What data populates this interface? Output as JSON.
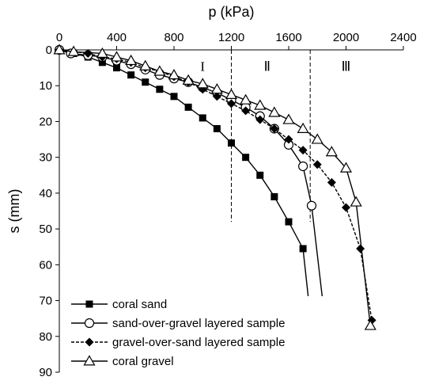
{
  "chart_data": {
    "type": "line",
    "xlabel": "p (kPa)",
    "ylabel": "s (mm)",
    "xlim": [
      0,
      2400
    ],
    "ylim": [
      0,
      90
    ],
    "x_ticks": [
      "0",
      "400",
      "800",
      "1200",
      "1600",
      "2000",
      "2400"
    ],
    "y_ticks": [
      "0",
      "10",
      "20",
      "30",
      "40",
      "50",
      "60",
      "70",
      "80",
      "90"
    ],
    "x_axis_position": "top",
    "y_axis_inverted": true,
    "grid": false,
    "legend_position": "bottom-left",
    "regions": [
      {
        "label": "I",
        "boundary_p": null
      },
      {
        "label": "Ⅱ",
        "boundary_p": 1200
      },
      {
        "label": "Ⅲ",
        "boundary_p": 1750
      }
    ],
    "boundaries": [
      {
        "p": 1200,
        "s_min": 0,
        "s_max": 48
      },
      {
        "p": 1750,
        "s_min": 0,
        "s_max": 48
      }
    ],
    "region_label_positions": [
      {
        "label": "I",
        "p": 1000,
        "s": 4.5
      },
      {
        "label": "Ⅱ",
        "p": 1450,
        "s": 4.5
      },
      {
        "label": "Ⅲ",
        "p": 2000,
        "s": 4.5
      }
    ],
    "series": [
      {
        "name": "coral sand",
        "marker": "filled-square",
        "line": "solid",
        "points": [
          [
            0,
            0
          ],
          [
            100,
            1
          ],
          [
            200,
            2
          ],
          [
            300,
            3.5
          ],
          [
            400,
            5
          ],
          [
            500,
            7
          ],
          [
            600,
            9
          ],
          [
            700,
            11
          ],
          [
            800,
            13
          ],
          [
            900,
            16
          ],
          [
            1000,
            19
          ],
          [
            1100,
            22
          ],
          [
            1200,
            26
          ],
          [
            1300,
            30
          ],
          [
            1400,
            35
          ],
          [
            1500,
            41
          ],
          [
            1600,
            48
          ],
          [
            1700,
            55.5
          ],
          [
            1750,
            74
          ]
        ]
      },
      {
        "name": "sand-over-gravel layered sample",
        "marker": "open-circle",
        "line": "solid",
        "points": [
          [
            0,
            0
          ],
          [
            80,
            1
          ],
          [
            200,
            1.5
          ],
          [
            300,
            2
          ],
          [
            400,
            3
          ],
          [
            500,
            4
          ],
          [
            600,
            5.5
          ],
          [
            700,
            7
          ],
          [
            800,
            8
          ],
          [
            900,
            9
          ],
          [
            1000,
            10.5
          ],
          [
            1100,
            12
          ],
          [
            1200,
            14
          ],
          [
            1300,
            16
          ],
          [
            1400,
            18.5
          ],
          [
            1500,
            22
          ],
          [
            1600,
            26.5
          ],
          [
            1700,
            32.5
          ],
          [
            1760,
            43.5
          ],
          [
            1840,
            71
          ]
        ]
      },
      {
        "name": "gravel-over-sand layered sample",
        "marker": "filled-diamond",
        "line": "dashed",
        "points": [
          [
            0,
            0
          ],
          [
            200,
            1
          ],
          [
            300,
            2
          ],
          [
            400,
            2.5
          ],
          [
            500,
            3.5
          ],
          [
            600,
            5
          ],
          [
            700,
            6
          ],
          [
            800,
            7.5
          ],
          [
            900,
            9
          ],
          [
            1000,
            11
          ],
          [
            1100,
            13
          ],
          [
            1200,
            15
          ],
          [
            1300,
            17
          ],
          [
            1400,
            19.5
          ],
          [
            1500,
            22
          ],
          [
            1600,
            25
          ],
          [
            1700,
            28
          ],
          [
            1800,
            32
          ],
          [
            1900,
            37
          ],
          [
            2000,
            44
          ],
          [
            2100,
            55.5
          ],
          [
            2180,
            75.5
          ]
        ]
      },
      {
        "name": "coral gravel",
        "marker": "open-triangle",
        "line": "solid",
        "points": [
          [
            0,
            0
          ],
          [
            100,
            0.5
          ],
          [
            300,
            1
          ],
          [
            400,
            2
          ],
          [
            500,
            3
          ],
          [
            600,
            4.5
          ],
          [
            700,
            6
          ],
          [
            800,
            7
          ],
          [
            900,
            8.5
          ],
          [
            1000,
            9.5
          ],
          [
            1100,
            11
          ],
          [
            1200,
            12.5
          ],
          [
            1300,
            14
          ],
          [
            1400,
            15.5
          ],
          [
            1500,
            17.5
          ],
          [
            1600,
            19.5
          ],
          [
            1700,
            22
          ],
          [
            1800,
            25
          ],
          [
            1900,
            28.5
          ],
          [
            2000,
            33
          ],
          [
            2070,
            42.5
          ],
          [
            2170,
            77
          ]
        ]
      }
    ]
  }
}
